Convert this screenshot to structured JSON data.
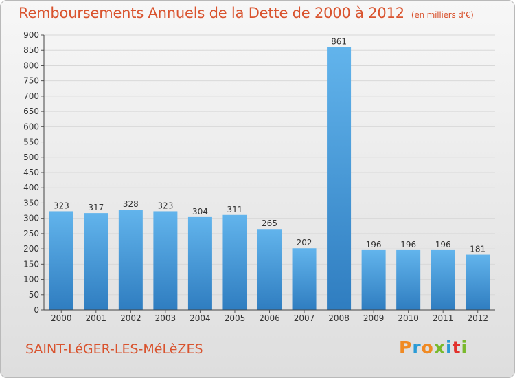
{
  "header": {
    "title": "Remboursements Annuels de la Dette de 2000 à 2012",
    "unit": "(en milliers d'€)"
  },
  "footer": {
    "commune": "SAINT-LéGER-LES-MéLèZES",
    "logo_text": "Proxiti"
  },
  "colors": {
    "title": "#d9532e",
    "bar_top": "#62b4ec",
    "bar_bottom": "#2f7dc0",
    "grid": "#d8d8d8",
    "logo": [
      "#f08a24",
      "#2a9bd6",
      "#f08a24",
      "#79b92c",
      "#2a9bd6",
      "#e2312c",
      "#79b92c"
    ]
  },
  "chart_data": {
    "type": "bar",
    "title": "Remboursements Annuels de la Dette de 2000 à 2012",
    "xlabel": "",
    "ylabel": "",
    "ylim": [
      0,
      900
    ],
    "ytick_step": 50,
    "grid": true,
    "categories": [
      "2000",
      "2001",
      "2002",
      "2003",
      "2004",
      "2005",
      "2006",
      "2007",
      "2008",
      "2009",
      "2010",
      "2011",
      "2012"
    ],
    "values": [
      323,
      317,
      328,
      323,
      304,
      311,
      265,
      202,
      861,
      196,
      196,
      196,
      181
    ]
  }
}
